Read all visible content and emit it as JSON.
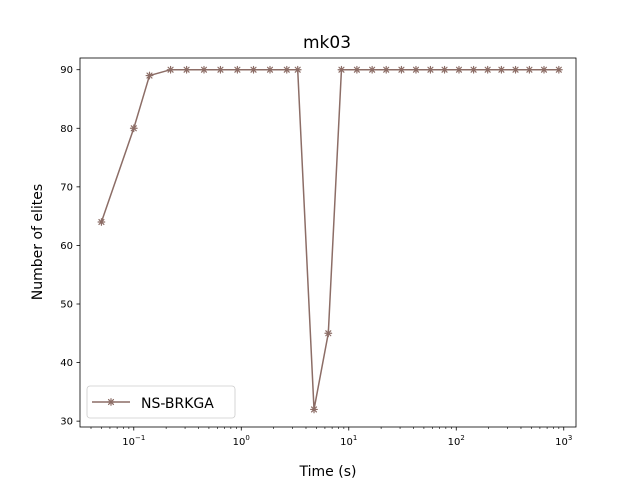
{
  "chart_data": {
    "type": "line",
    "title": "mk03",
    "xlabel": "Time (s)",
    "ylabel": "Number of elites",
    "xscale": "log",
    "xlim": [
      0.0316,
      1300
    ],
    "ylim": [
      29,
      92
    ],
    "x_ticks": [
      {
        "value": 0.1,
        "base": "10",
        "exp": "−1"
      },
      {
        "value": 1,
        "base": "10",
        "exp": "0"
      },
      {
        "value": 10,
        "base": "10",
        "exp": "1"
      },
      {
        "value": 100,
        "base": "10",
        "exp": "2"
      },
      {
        "value": 1000,
        "base": "10",
        "exp": "3"
      }
    ],
    "y_ticks": [
      30,
      40,
      50,
      60,
      70,
      80,
      90
    ],
    "grid": false,
    "legend": {
      "placement": "lower-left"
    },
    "series": [
      {
        "name": "NS-BRKGA",
        "color": "#8c6d66",
        "marker": "x-star",
        "x": [
          0.05,
          0.1,
          0.14,
          0.22,
          0.31,
          0.45,
          0.64,
          0.92,
          1.3,
          1.85,
          2.65,
          3.35,
          4.75,
          6.45,
          8.55,
          11.9,
          16.5,
          22.3,
          30.9,
          42.2,
          57.5,
          77.8,
          106,
          145,
          196,
          263,
          356,
          479,
          655,
          900
        ],
        "y": [
          64,
          80,
          89,
          90,
          90,
          90,
          90,
          90,
          90,
          90,
          90,
          90,
          32,
          45,
          90,
          90,
          90,
          90,
          90,
          90,
          90,
          90,
          90,
          90,
          90,
          90,
          90,
          90,
          90,
          90
        ]
      }
    ]
  }
}
